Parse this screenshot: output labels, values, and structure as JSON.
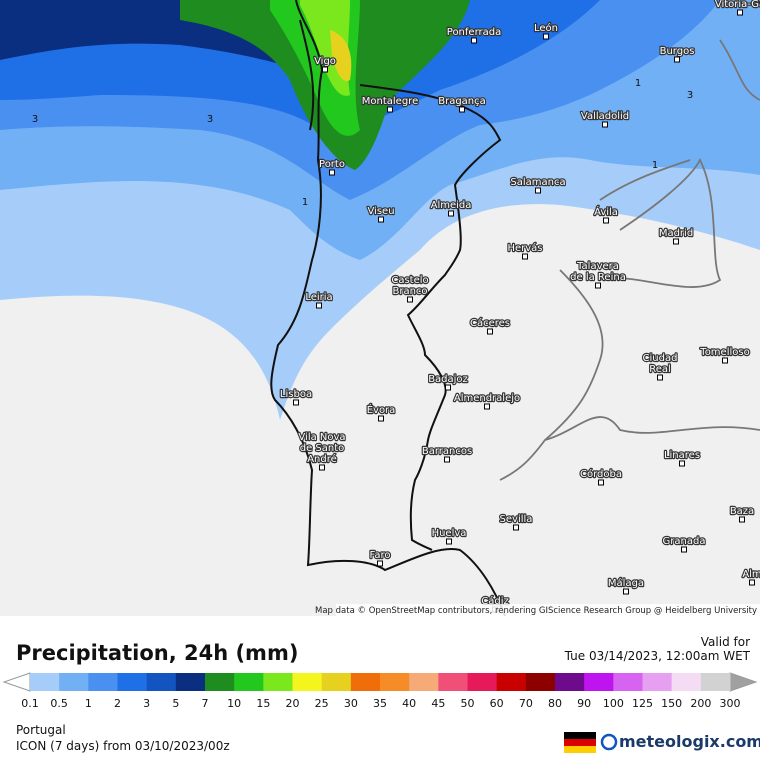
{
  "map": {
    "cities": [
      {
        "lines": [
          "Vitoria-Ga"
        ]
      },
      {
        "lines": [
          "León"
        ]
      },
      {
        "lines": [
          "Ponferrada"
        ]
      },
      {
        "lines": [
          "Vigo"
        ]
      },
      {
        "lines": [
          "Burgos"
        ]
      },
      {
        "lines": [
          "Montalegre"
        ]
      },
      {
        "lines": [
          "Bragança"
        ]
      },
      {
        "lines": [
          "Valladolid"
        ]
      },
      {
        "lines": [
          "Porto"
        ]
      },
      {
        "lines": [
          "Salamanca"
        ]
      },
      {
        "lines": [
          "Viseu"
        ]
      },
      {
        "lines": [
          "Almeida"
        ]
      },
      {
        "lines": [
          "Ávila"
        ]
      },
      {
        "lines": [
          "Madrid"
        ]
      },
      {
        "lines": [
          "Hervás"
        ]
      },
      {
        "lines": [
          "Talavera",
          "de la Reina"
        ]
      },
      {
        "lines": [
          "Castelo",
          "Branco"
        ]
      },
      {
        "lines": [
          "Leiria"
        ]
      },
      {
        "lines": [
          "Cáceres"
        ]
      },
      {
        "lines": [
          "Ciudad",
          "Real"
        ]
      },
      {
        "lines": [
          "Tomelloso"
        ]
      },
      {
        "lines": [
          "Badajoz"
        ]
      },
      {
        "lines": [
          "Almendralejo"
        ]
      },
      {
        "lines": [
          "Lisboa"
        ]
      },
      {
        "lines": [
          "Évora"
        ]
      },
      {
        "lines": [
          "Vila Nova",
          "de Santo",
          "André"
        ]
      },
      {
        "lines": [
          "Barrancos"
        ]
      },
      {
        "lines": [
          "Linares"
        ]
      },
      {
        "lines": [
          "Córdoba"
        ]
      },
      {
        "lines": [
          "Sevilla"
        ]
      },
      {
        "lines": [
          "Baza"
        ]
      },
      {
        "lines": [
          "Huelva"
        ]
      },
      {
        "lines": [
          "Granada"
        ]
      },
      {
        "lines": [
          "Faro"
        ]
      },
      {
        "lines": [
          "Málaga"
        ]
      },
      {
        "lines": [
          "Alm"
        ]
      },
      {
        "lines": [
          "Cádiz"
        ]
      }
    ],
    "contour_labels": [
      "3",
      "3",
      "3",
      "1",
      "1",
      "1"
    ],
    "attribution": "Map data © OpenStreetMap contributors, rendering GIScience Research Group @ Heidelberg University"
  },
  "footer": {
    "title": "Precipitation, 24h (mm)",
    "valid_label": "Valid for",
    "valid_time": "Tue 03/14/2023, 12:00am WET",
    "region": "Portugal",
    "model": "ICON (7 days) from 03/10/2023/00z",
    "brand": "meteologix.com"
  },
  "legend": {
    "labels": [
      "0.1",
      "0.5",
      "1",
      "2",
      "3",
      "5",
      "7",
      "10",
      "15",
      "20",
      "25",
      "30",
      "35",
      "40",
      "45",
      "50",
      "60",
      "70",
      "80",
      "90",
      "100",
      "125",
      "150",
      "200",
      "300"
    ],
    "colors": [
      "#a6cdfa",
      "#72b0f6",
      "#4a90f0",
      "#1f6fe6",
      "#1254c0",
      "#0a2e80",
      "#1e8c1e",
      "#22c81e",
      "#7be81e",
      "#f5f51e",
      "#e6d21e",
      "#f06e0a",
      "#f58c28",
      "#f5aa78",
      "#f05078",
      "#e6195a",
      "#c80000",
      "#8c0000",
      "#6e0a8c",
      "#be14f0",
      "#d764f0",
      "#e6a0f0",
      "#f5dcf5",
      "#d2d2d2"
    ]
  }
}
